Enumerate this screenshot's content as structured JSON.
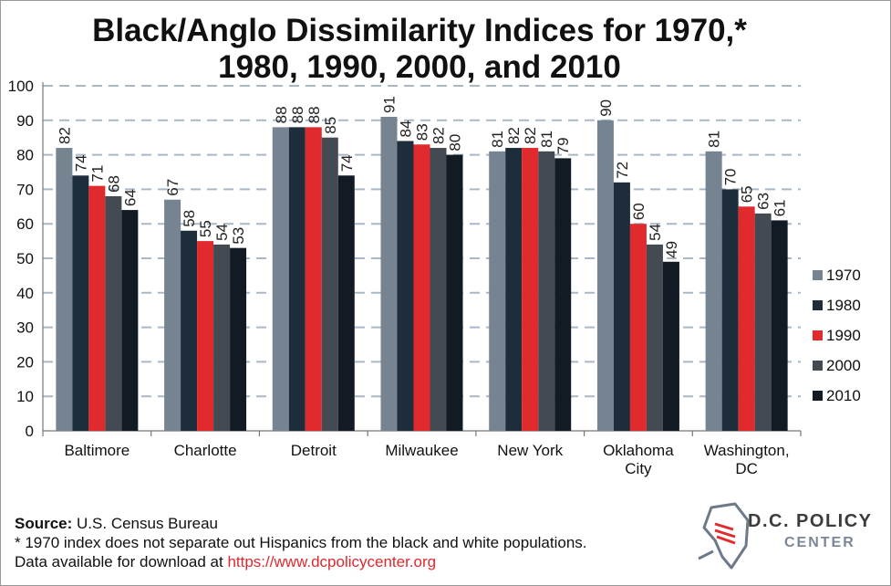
{
  "title_line1": "Black/Anglo Dissimilarity Indices for 1970,*",
  "title_line2": "1980, 1990, 2000, and 2010",
  "footer": {
    "source_label": "Source:",
    "source_text": "U.S. Census Bureau",
    "note": "* 1970 index does not separate out Hispanics from the black and white populations.",
    "download_text": "Data available for download at",
    "download_link": "https://www.dcpolicycenter.org"
  },
  "logo": {
    "line1": "D.C. POLICY",
    "line2": "CENTER"
  },
  "colors": {
    "1970": "#768391",
    "1980": "#1d2d3b",
    "1990": "#e12a2d",
    "2000": "#444a52",
    "2010": "#121a24",
    "grid": "#a9b7c7"
  },
  "chart_data": {
    "type": "bar",
    "title": "Black/Anglo Dissimilarity Indices for 1970,* 1980, 1990, 2000, and 2010",
    "categories": [
      "Baltimore",
      "Charlotte",
      "Detroit",
      "Milwaukee",
      "New York",
      "Oklahoma City",
      "Washington, DC"
    ],
    "category_lines": [
      [
        "Baltimore"
      ],
      [
        "Charlotte"
      ],
      [
        "Detroit"
      ],
      [
        "Milwaukee"
      ],
      [
        "New York"
      ],
      [
        "Oklahoma",
        "City"
      ],
      [
        "Washington,",
        "DC"
      ]
    ],
    "series": [
      {
        "name": "1970",
        "values": [
          82,
          67,
          88,
          91,
          81,
          90,
          81
        ]
      },
      {
        "name": "1980",
        "values": [
          74,
          58,
          88,
          84,
          82,
          72,
          70
        ]
      },
      {
        "name": "1990",
        "values": [
          71,
          55,
          88,
          83,
          82,
          60,
          65
        ]
      },
      {
        "name": "2000",
        "values": [
          68,
          54,
          85,
          82,
          81,
          54,
          63
        ]
      },
      {
        "name": "2010",
        "values": [
          64,
          53,
          74,
          80,
          79,
          49,
          61
        ]
      }
    ],
    "ylim": [
      0,
      100
    ],
    "yticks": [
      0,
      10,
      20,
      30,
      40,
      50,
      60,
      70,
      80,
      90,
      100
    ],
    "grid": true,
    "legend_position": "right",
    "data_labels": true
  }
}
